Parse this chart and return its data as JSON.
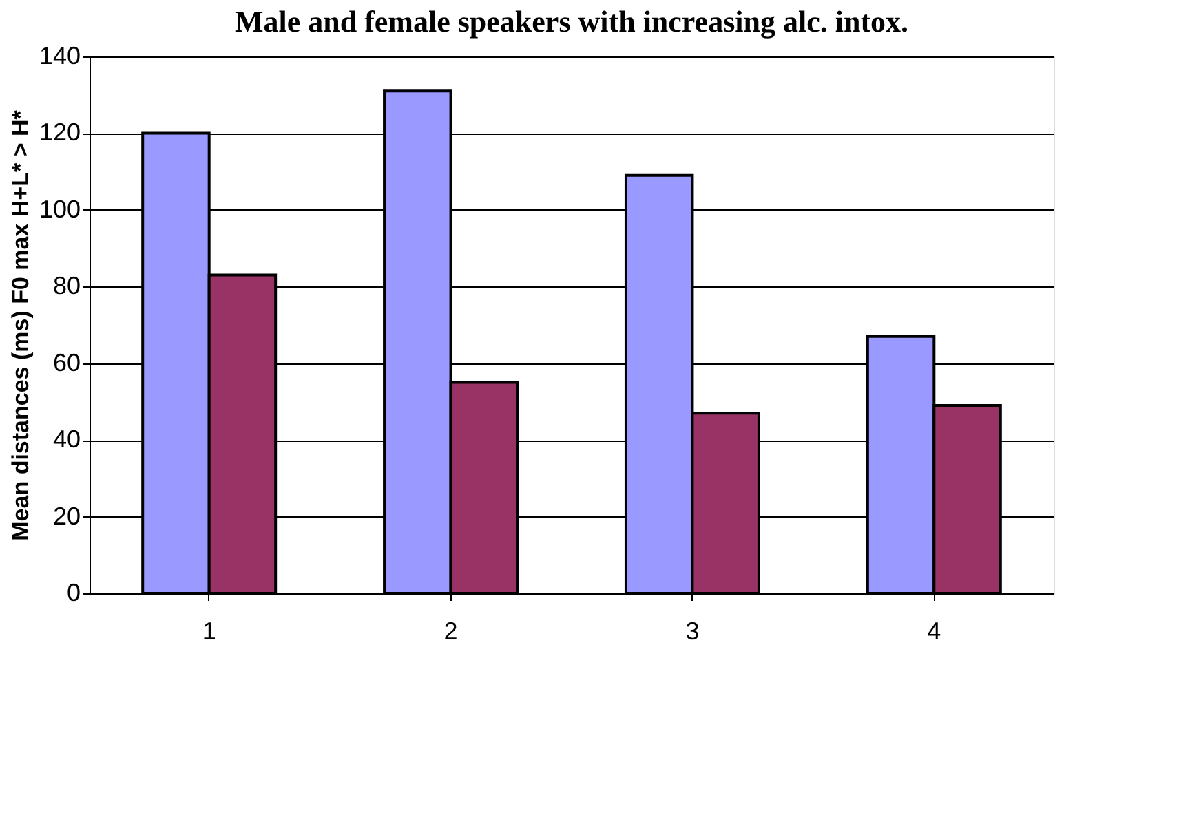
{
  "chart_data": {
    "type": "bar",
    "title": "Male and female speakers with increasing alc. intox.",
    "ylabel": "Mean distances (ms) F0 max H+L* > H*",
    "categories": [
      "1",
      "2",
      "3",
      "4"
    ],
    "series": [
      {
        "color": "#9999ff",
        "values": [
          120,
          131,
          109,
          67
        ]
      },
      {
        "color": "#993366",
        "values": [
          83,
          55,
          47,
          49
        ]
      }
    ],
    "ylim": [
      0,
      140
    ],
    "yticks": [
      0,
      20,
      40,
      60,
      80,
      100,
      120,
      140
    ],
    "grid": "y",
    "legend": false
  }
}
